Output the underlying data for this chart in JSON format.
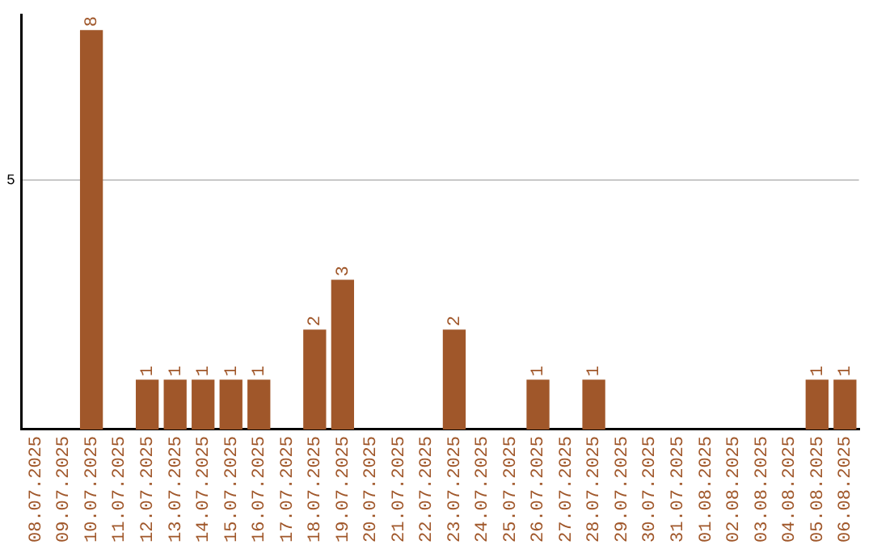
{
  "chart_data": {
    "type": "bar",
    "categories": [
      "08.07.2025",
      "09.07.2025",
      "10.07.2025",
      "11.07.2025",
      "12.07.2025",
      "13.07.2025",
      "14.07.2025",
      "15.07.2025",
      "16.07.2025",
      "17.07.2025",
      "18.07.2025",
      "19.07.2025",
      "20.07.2025",
      "21.07.2025",
      "22.07.2025",
      "23.07.2025",
      "24.07.2025",
      "25.07.2025",
      "26.07.2025",
      "27.07.2025",
      "28.07.2025",
      "29.07.2025",
      "30.07.2025",
      "31.07.2025",
      "01.08.2025",
      "02.08.2025",
      "03.08.2025",
      "04.08.2025",
      "05.08.2025",
      "06.08.2025"
    ],
    "values": [
      0,
      0,
      8,
      0,
      1,
      1,
      1,
      1,
      1,
      0,
      2,
      3,
      0,
      0,
      0,
      2,
      0,
      0,
      1,
      0,
      1,
      0,
      0,
      0,
      0,
      0,
      0,
      0,
      1,
      1
    ],
    "value_labels": [
      null,
      null,
      "8",
      null,
      "1",
      "1",
      "1",
      "1",
      "1",
      null,
      "2",
      "3",
      null,
      null,
      null,
      "2",
      null,
      null,
      "1",
      null,
      "1",
      null,
      null,
      null,
      null,
      null,
      null,
      null,
      "1",
      "1"
    ],
    "color": "#a0572a",
    "ylim": [
      0,
      8.3
    ],
    "yticks": [
      5
    ],
    "grid": "y",
    "legend": false
  }
}
